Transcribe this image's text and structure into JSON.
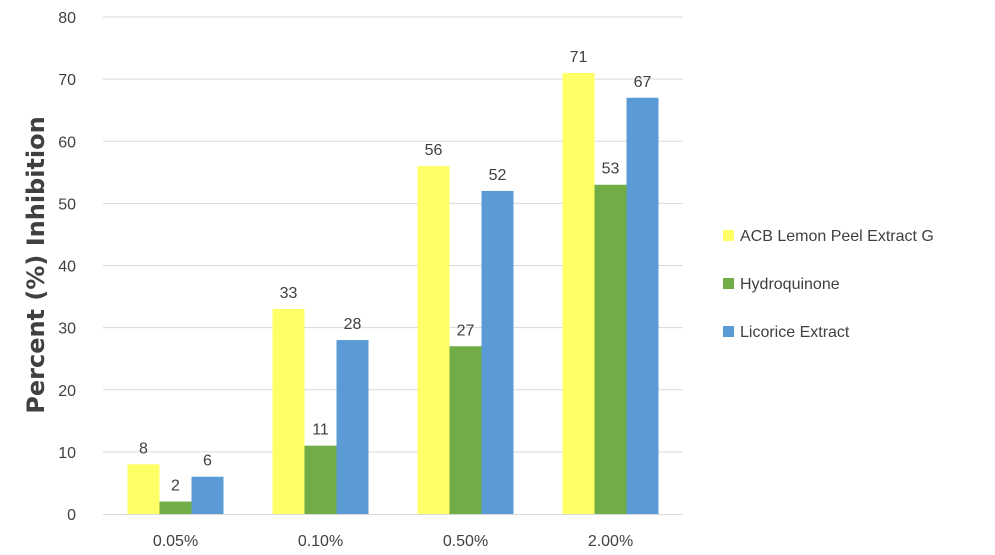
{
  "chart_data": {
    "type": "bar",
    "title": "",
    "xlabel": "",
    "ylabel": "Percent (%) Inhibition",
    "categories": [
      "0.05%",
      "0.10%",
      "0.50%",
      "2.00%"
    ],
    "series": [
      {
        "name": "ACB Lemon Peel Extract G",
        "color": "#ffff66",
        "values": [
          8,
          33,
          56,
          71
        ]
      },
      {
        "name": "Hydroquinone",
        "color": "#70ad47",
        "values": [
          2,
          11,
          27,
          53
        ]
      },
      {
        "name": "Licorice Extract",
        "color": "#5b9bd5",
        "values": [
          6,
          28,
          52,
          67
        ]
      }
    ],
    "ylim": [
      0,
      80
    ],
    "yticks": [
      0,
      10,
      20,
      30,
      40,
      50,
      60,
      70,
      80
    ],
    "grid": true,
    "legend_position": "right",
    "data_labels": true
  }
}
